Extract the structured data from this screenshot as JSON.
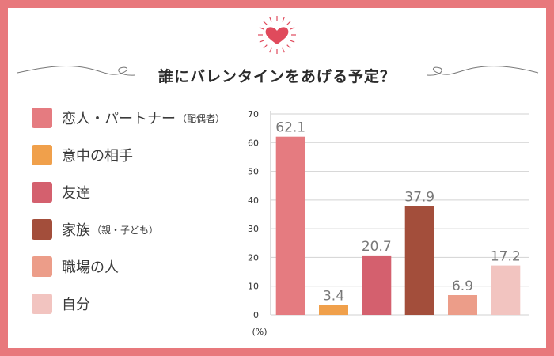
{
  "title": "誰にバレンタインをあげる予定？",
  "colors": {
    "border": "#e8787c",
    "heart": "#e04a5c",
    "deco_line": "#777777",
    "grid": "#d2d2d2",
    "axis_text": "#333333",
    "value_text": "#777777"
  },
  "legend": [
    {
      "label": "恋人・パートナー",
      "sub": "（配偶者）",
      "color": "#e57b80"
    },
    {
      "label": "意中の相手",
      "sub": "",
      "color": "#f0a04b"
    },
    {
      "label": "友達",
      "sub": "",
      "color": "#d4606e"
    },
    {
      "label": "家族",
      "sub": "（親・子ども）",
      "color": "#a34e3b"
    },
    {
      "label": "職場の人",
      "sub": "",
      "color": "#ec9d89"
    },
    {
      "label": "自分",
      "sub": "",
      "color": "#f2c4c0"
    }
  ],
  "chart_data": {
    "type": "bar",
    "title": "誰にバレンタインをあげる予定？",
    "categories": [
      "恋人・パートナー（配偶者）",
      "意中の相手",
      "友達",
      "家族（親・子ども）",
      "職場の人",
      "自分"
    ],
    "values": [
      62.1,
      3.4,
      20.7,
      37.9,
      6.9,
      17.2
    ],
    "value_labels": [
      "62.1",
      "3.4",
      "20.7",
      "37.9",
      "6.9",
      "17.2"
    ],
    "colors": [
      "#e57b80",
      "#f0a04b",
      "#d4606e",
      "#a34e3b",
      "#ec9d89",
      "#f2c4c0"
    ],
    "ylim": [
      0,
      70
    ],
    "yticks": [
      "0",
      "10",
      "20",
      "30",
      "40",
      "50",
      "60",
      "70"
    ],
    "yticks_values": [
      0,
      10,
      20,
      30,
      40,
      50,
      60,
      70
    ],
    "unit_label": "(%)",
    "grid": true,
    "legend_position": "left"
  }
}
